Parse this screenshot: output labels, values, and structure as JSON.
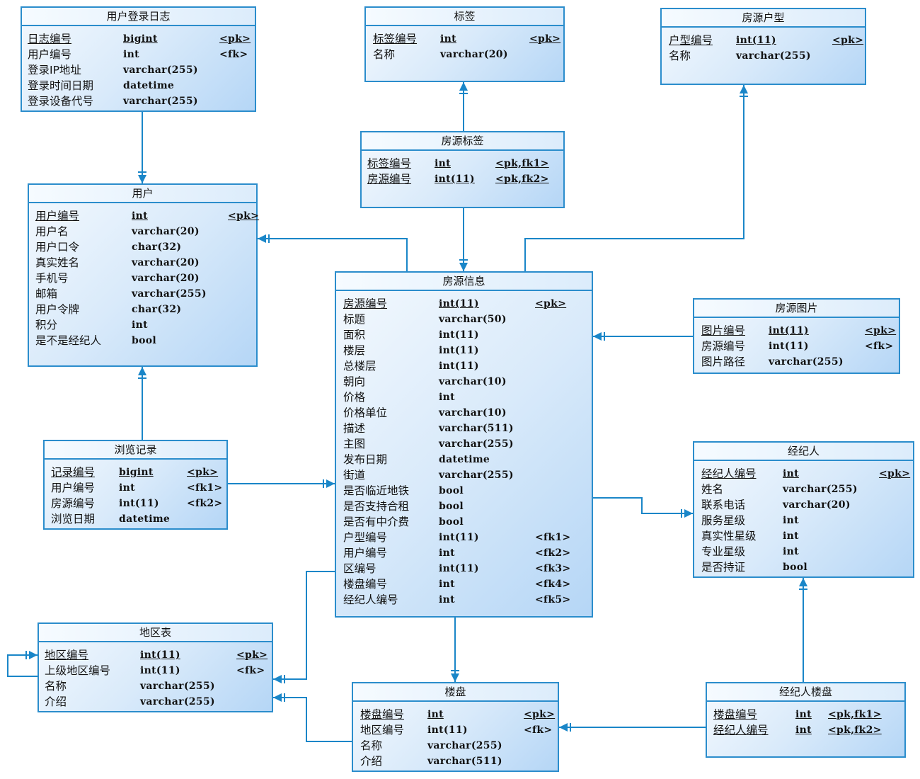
{
  "colors": {
    "border": "#2b8dcc",
    "line": "#1a86c8",
    "fill_light": "#f4f9fe",
    "fill_dark": "#b5d6f6"
  },
  "tables": [
    {
      "title": "用户登录日志",
      "columns": [
        [
          "日志编号",
          "bigint",
          "<pk>",
          true
        ],
        [
          "用户编号",
          "int",
          "<fk>",
          false
        ],
        [
          "登录IP地址",
          "varchar(255)",
          "",
          false
        ],
        [
          "登录时间日期",
          "datetime",
          "",
          false
        ],
        [
          "登录设备代号",
          "varchar(255)",
          "",
          false
        ]
      ]
    },
    {
      "title": "标签",
      "columns": [
        [
          "标签编号",
          "int",
          "<pk>",
          true
        ],
        [
          "名称",
          "varchar(20)",
          "",
          false
        ]
      ]
    },
    {
      "title": "房源户型",
      "columns": [
        [
          "户型编号",
          "int(11)",
          "<pk>",
          true
        ],
        [
          "名称",
          "varchar(255)",
          "",
          false
        ]
      ]
    },
    {
      "title": "房源标签",
      "columns": [
        [
          "标签编号",
          "int",
          "<pk,fk1>",
          true
        ],
        [
          "房源编号",
          "int(11)",
          "<pk,fk2>",
          true
        ]
      ]
    },
    {
      "title": "用户",
      "columns": [
        [
          "用户编号",
          "int",
          "<pk>",
          true
        ],
        [
          "用户名",
          "varchar(20)",
          "",
          false
        ],
        [
          "用户口令",
          "char(32)",
          "",
          false
        ],
        [
          "真实姓名",
          "varchar(20)",
          "",
          false
        ],
        [
          "手机号",
          "varchar(20)",
          "",
          false
        ],
        [
          "邮箱",
          "varchar(255)",
          "",
          false
        ],
        [
          "用户令牌",
          "char(32)",
          "",
          false
        ],
        [
          "积分",
          "int",
          "",
          false
        ],
        [
          "是不是经纪人",
          "bool",
          "",
          false
        ]
      ]
    },
    {
      "title": "房源信息",
      "columns": [
        [
          "房源编号",
          "int(11)",
          "<pk>",
          true
        ],
        [
          "标题",
          "varchar(50)",
          "",
          false
        ],
        [
          "面积",
          "int(11)",
          "",
          false
        ],
        [
          "楼层",
          "int(11)",
          "",
          false
        ],
        [
          "总楼层",
          "int(11)",
          "",
          false
        ],
        [
          "朝向",
          "varchar(10)",
          "",
          false
        ],
        [
          "价格",
          "int",
          "",
          false
        ],
        [
          "价格单位",
          "varchar(10)",
          "",
          false
        ],
        [
          "描述",
          "varchar(511)",
          "",
          false
        ],
        [
          "主图",
          "varchar(255)",
          "",
          false
        ],
        [
          "发布日期",
          "datetime",
          "",
          false
        ],
        [
          "街道",
          "varchar(255)",
          "",
          false
        ],
        [
          "是否临近地铁",
          "bool",
          "",
          false
        ],
        [
          "是否支持合租",
          "bool",
          "",
          false
        ],
        [
          "是否有中介费",
          "bool",
          "",
          false
        ],
        [
          "户型编号",
          "int(11)",
          "<fk1>",
          false
        ],
        [
          "用户编号",
          "int",
          "<fk2>",
          false
        ],
        [
          "区编号",
          "int(11)",
          "<fk3>",
          false
        ],
        [
          "楼盘编号",
          "int",
          "<fk4>",
          false
        ],
        [
          "经纪人编号",
          "int",
          "<fk5>",
          false
        ]
      ]
    },
    {
      "title": "房源图片",
      "columns": [
        [
          "图片编号",
          "int(11)",
          "<pk>",
          true
        ],
        [
          "房源编号",
          "int(11)",
          "<fk>",
          false
        ],
        [
          "图片路径",
          "varchar(255)",
          "",
          false
        ]
      ]
    },
    {
      "title": "浏览记录",
      "columns": [
        [
          "记录编号",
          "bigint",
          "<pk>",
          true
        ],
        [
          "用户编号",
          "int",
          "<fk1>",
          false
        ],
        [
          "房源编号",
          "int(11)",
          "<fk2>",
          false
        ],
        [
          "浏览日期",
          "datetime",
          "",
          false
        ]
      ]
    },
    {
      "title": "经纪人",
      "columns": [
        [
          "经纪人编号",
          "int",
          "<pk>",
          true
        ],
        [
          "姓名",
          "varchar(255)",
          "",
          false
        ],
        [
          "联系电话",
          "varchar(20)",
          "",
          false
        ],
        [
          "服务星级",
          "int",
          "",
          false
        ],
        [
          "真实性星级",
          "int",
          "",
          false
        ],
        [
          "专业星级",
          "int",
          "",
          false
        ],
        [
          "是否持证",
          "bool",
          "",
          false
        ]
      ]
    },
    {
      "title": "地区表",
      "columns": [
        [
          "地区编号",
          "int(11)",
          "<pk>",
          true
        ],
        [
          "上级地区编号",
          "int(11)",
          "<fk>",
          false
        ],
        [
          "名称",
          "varchar(255)",
          "",
          false
        ],
        [
          "介绍",
          "varchar(255)",
          "",
          false
        ]
      ]
    },
    {
      "title": "楼盘",
      "columns": [
        [
          "楼盘编号",
          "int",
          "<pk>",
          true
        ],
        [
          "地区编号",
          "int(11)",
          "<fk>",
          false
        ],
        [
          "名称",
          "varchar(255)",
          "",
          false
        ],
        [
          "介绍",
          "varchar(511)",
          "",
          false
        ]
      ]
    },
    {
      "title": "经纪人楼盘",
      "columns": [
        [
          "楼盘编号",
          "int",
          "<pk,fk1>",
          true
        ],
        [
          "经纪人编号",
          "int",
          "<pk,fk2>",
          true
        ]
      ]
    }
  ],
  "relationships": [
    {
      "from": "用户登录日志",
      "to": "用户"
    },
    {
      "from": "房源标签",
      "to": "标签"
    },
    {
      "from": "房源标签",
      "to": "房源信息"
    },
    {
      "from": "房源信息",
      "to": "用户"
    },
    {
      "from": "房源信息",
      "to": "房源户型"
    },
    {
      "from": "房源图片",
      "to": "房源信息"
    },
    {
      "from": "浏览记录",
      "to": "用户"
    },
    {
      "from": "浏览记录",
      "to": "房源信息"
    },
    {
      "from": "房源信息",
      "to": "经纪人"
    },
    {
      "from": "房源信息",
      "to": "地区表"
    },
    {
      "from": "房源信息",
      "to": "楼盘"
    },
    {
      "from": "楼盘",
      "to": "地区表"
    },
    {
      "from": "地区表",
      "to": "地区表"
    },
    {
      "from": "经纪人楼盘",
      "to": "楼盘"
    },
    {
      "from": "经纪人楼盘",
      "to": "经纪人"
    }
  ]
}
